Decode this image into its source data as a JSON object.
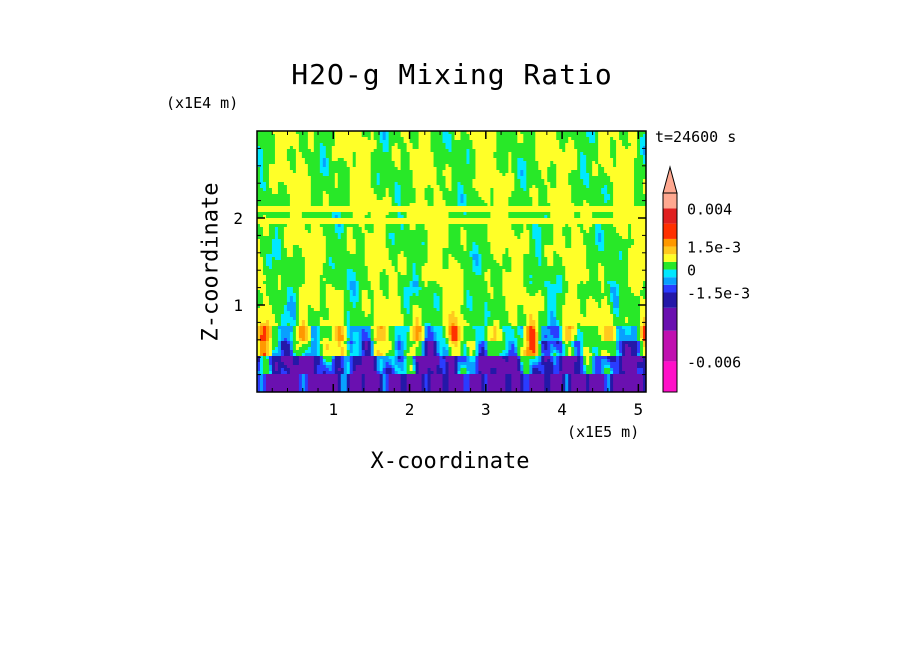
{
  "chart_data": {
    "type": "heatmap",
    "title": "H2O-g Mixing Ratio",
    "xlabel": "X-coordinate",
    "ylabel": "Z-coordinate",
    "x_unit": "(x1E5 m)",
    "z_unit": "(x1E4 m)",
    "time_label": "t=24600 s",
    "xlim": [
      0.0,
      5.1
    ],
    "zlim": [
      0.0,
      3.0
    ],
    "x_ticks": [
      1,
      2,
      3,
      4,
      5
    ],
    "x_tick_labels": [
      "1",
      "2",
      "3",
      "4",
      "5"
    ],
    "z_ticks": [
      1,
      2
    ],
    "z_tick_labels": [
      "1",
      "2"
    ],
    "colorbar": {
      "levels": [
        -0.008,
        -0.006,
        -0.004,
        -0.0025,
        -0.0015,
        -0.001,
        -0.0005,
        0,
        0.0005,
        0.001,
        0.0015,
        0.002,
        0.003,
        0.004,
        0.005
      ],
      "colors": [
        "#ff10c8",
        "#c010b0",
        "#6a10b0",
        "#2418a8",
        "#2a3cff",
        "#08a0ff",
        "#00e8ff",
        "#28e828",
        "#ffff28",
        "#ffc81e",
        "#ff9800",
        "#ff3000",
        "#e02020",
        "#ffa890"
      ],
      "tick_values": [
        0.004,
        0.0015,
        0,
        -0.0015,
        -0.006
      ],
      "tick_labels": [
        "0.004",
        "1.5e-3",
        "0",
        "-1.5e-3",
        "-0.006"
      ],
      "extend": "max"
    },
    "grid": false
  }
}
